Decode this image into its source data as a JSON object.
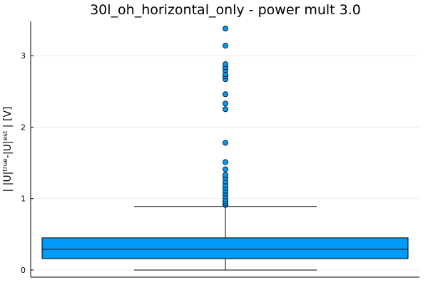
{
  "chart_data": {
    "type": "boxplot",
    "title": "30l_oh_horizontal_only - power mult 3.0",
    "ylabel": "| |U|true-|U|est | [V]",
    "ylim": [
      -0.1,
      3.48
    ],
    "yticks": [
      0,
      1,
      2,
      3
    ],
    "grid": true,
    "legend": "none",
    "box": {
      "min": 0.0,
      "q1": 0.16,
      "median": 0.29,
      "q3": 0.45,
      "whisker_high": 0.89
    },
    "outliers": [
      0.91,
      0.93,
      0.96,
      0.99,
      1.03,
      1.07,
      1.11,
      1.15,
      1.19,
      1.24,
      1.29,
      1.33,
      1.41,
      1.51,
      1.78,
      2.25,
      2.33,
      2.46,
      2.67,
      2.71,
      2.74,
      2.8,
      2.84,
      2.88,
      3.14,
      3.38
    ],
    "colors": {
      "fill": "#009AF9",
      "line": "#000000"
    }
  }
}
